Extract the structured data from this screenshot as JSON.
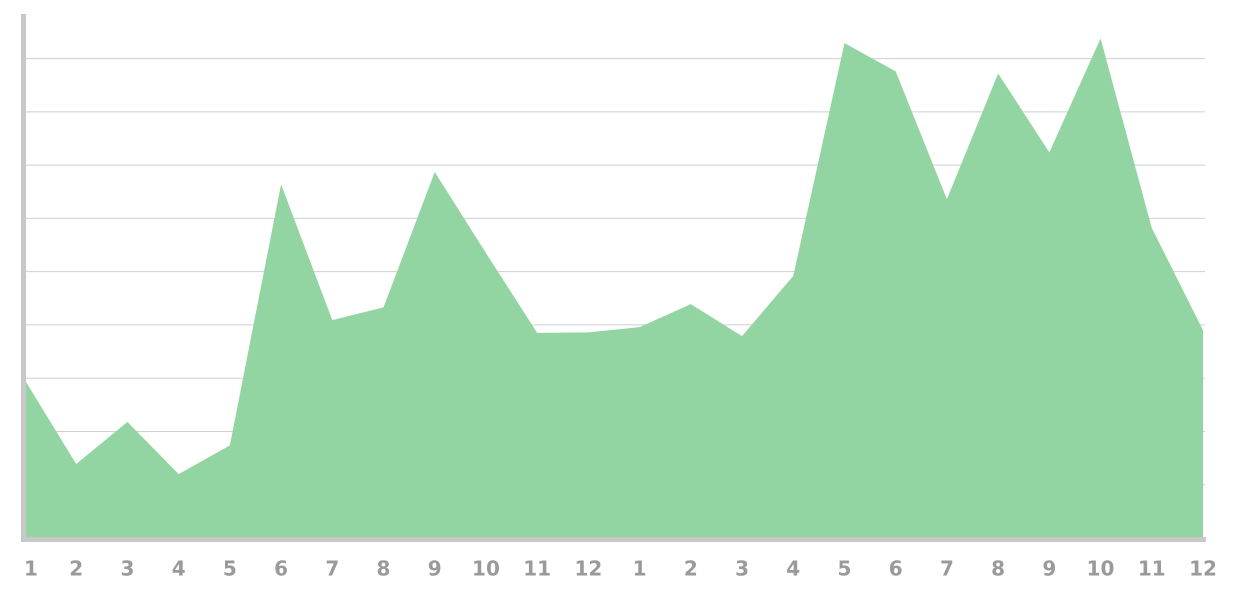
{
  "chart_data": {
    "type": "area",
    "categories": [
      "1",
      "2",
      "3",
      "4",
      "5",
      "6",
      "7",
      "8",
      "9",
      "10",
      "11",
      "12",
      "1",
      "2",
      "3",
      "4",
      "5",
      "6",
      "7",
      "8",
      "9",
      "10",
      "11",
      "12"
    ],
    "values": [
      2.96,
      1.39,
      2.18,
      1.2,
      1.74,
      6.64,
      4.09,
      4.33,
      6.87,
      5.35,
      3.85,
      3.86,
      3.96,
      4.39,
      3.79,
      4.92,
      9.29,
      8.76,
      6.36,
      8.72,
      7.24,
      9.38,
      5.82,
      3.9
    ],
    "color": "#93d5a2",
    "ylim": [
      0,
      9.95
    ],
    "yticks": [
      1,
      2,
      3,
      4,
      5,
      6,
      7,
      8,
      9
    ],
    "grid": true
  }
}
